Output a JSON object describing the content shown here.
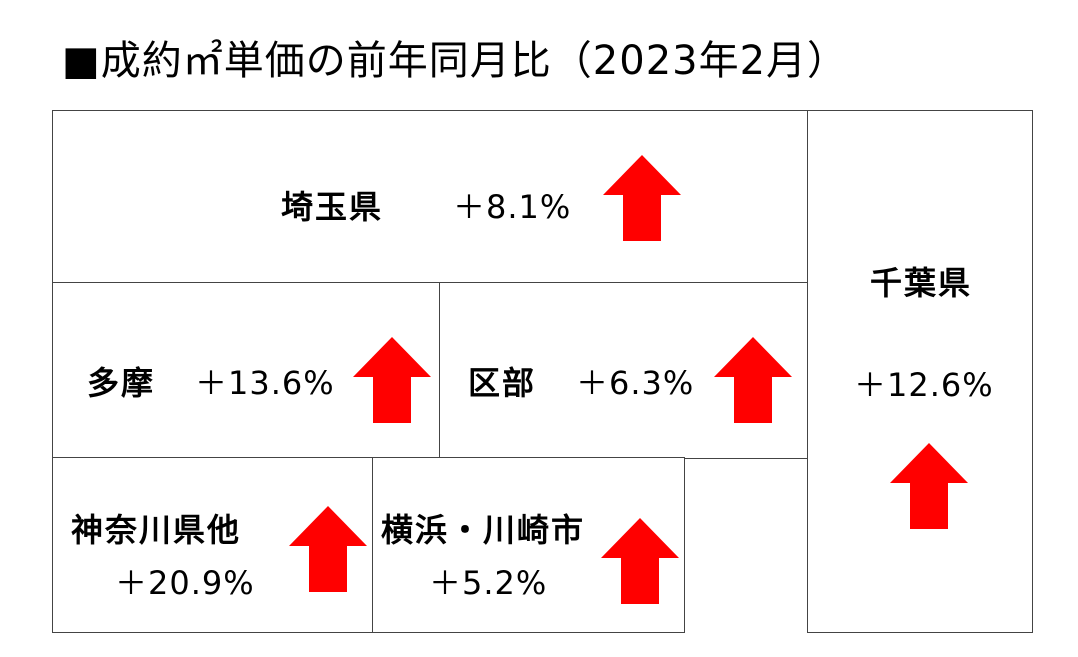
{
  "title": "■成約㎡単価の前年同月比（2023年2月）",
  "arrow_color": "#ff0000",
  "arrow_icon": "up-arrow-icon",
  "regions": {
    "saitama": {
      "name": "埼玉県",
      "value": "＋8.1%",
      "trend": "up"
    },
    "tama": {
      "name": "多摩",
      "value": "＋13.6%",
      "trend": "up"
    },
    "kubu": {
      "name": "区部",
      "value": "＋6.3%",
      "trend": "up"
    },
    "chiba": {
      "name": "千葉県",
      "value": "＋12.6%",
      "trend": "up"
    },
    "kanagawa_other": {
      "name": "神奈川県他",
      "value": "＋20.9%",
      "trend": "up"
    },
    "yokohama_kawasaki": {
      "name": "横浜・川崎市",
      "value": "＋5.2%",
      "trend": "up"
    }
  }
}
